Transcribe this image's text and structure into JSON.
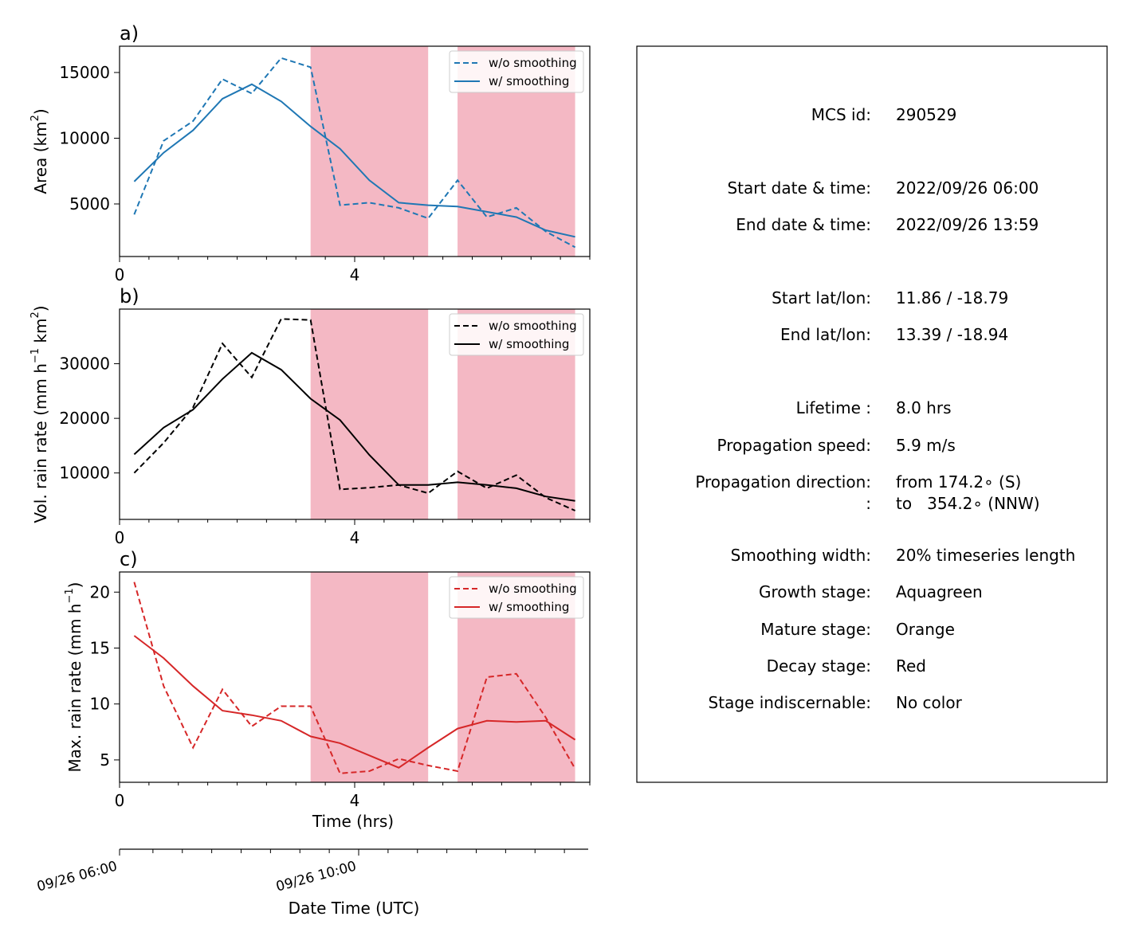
{
  "chart_data": [
    {
      "type": "line",
      "panel": "a)",
      "color": "#1f77b4",
      "ylabel": "Area  (km",
      "ylabel_sup": "2",
      "ylabel_tail": ")",
      "xlim": [
        0,
        8
      ],
      "ylim": [
        1000,
        17000
      ],
      "xticks": [
        0,
        4
      ],
      "yticks": [
        5000,
        10000,
        15000
      ],
      "legend": "top-right",
      "stage_shading": [
        [
          3.25,
          5.25
        ],
        [
          5.75,
          7.75
        ]
      ],
      "series": [
        {
          "name": "w/o smoothing",
          "dash": true,
          "x": [
            0.25,
            0.75,
            1.25,
            1.75,
            2.25,
            2.75,
            3.25,
            3.75,
            4.25,
            4.75,
            5.25,
            5.75,
            6.25,
            6.75,
            7.25,
            7.75
          ],
          "values": [
            4200,
            9800,
            11300,
            14500,
            13400,
            16100,
            15400,
            4900,
            5100,
            4700,
            3900,
            6800,
            4000,
            4700,
            2900,
            1700
          ]
        },
        {
          "name": "w/ smoothing",
          "dash": false,
          "x": [
            0.25,
            0.75,
            1.25,
            1.75,
            2.25,
            2.75,
            3.25,
            3.75,
            4.25,
            4.75,
            5.25,
            5.75,
            6.25,
            6.75,
            7.25,
            7.75
          ],
          "values": [
            6700,
            8900,
            10600,
            13000,
            14100,
            12800,
            10900,
            9200,
            6800,
            5100,
            4900,
            4800,
            4400,
            4000,
            3000,
            2500
          ]
        }
      ]
    },
    {
      "type": "line",
      "panel": "b)",
      "color": "#000000",
      "ylabel": "Vol. rain rate (mm h",
      "ylabel_sup": "−1",
      "ylabel_tail": " km",
      "ylabel_sup2": "2",
      "ylabel_tail2": ")",
      "xlim": [
        0,
        8
      ],
      "ylim": [
        1500,
        40000
      ],
      "xticks": [
        0,
        4
      ],
      "yticks": [
        10000,
        20000,
        30000
      ],
      "legend": "top-right",
      "stage_shading": [
        [
          3.25,
          5.25
        ],
        [
          5.75,
          7.75
        ]
      ],
      "series": [
        {
          "name": "w/o smoothing",
          "dash": true,
          "x": [
            0.25,
            0.75,
            1.25,
            1.75,
            2.25,
            2.75,
            3.25,
            3.75,
            4.25,
            4.75,
            5.25,
            5.75,
            6.25,
            6.75,
            7.25,
            7.75
          ],
          "values": [
            10000,
            15500,
            22000,
            33700,
            27500,
            38200,
            38000,
            7000,
            7300,
            7800,
            6300,
            10300,
            7200,
            9600,
            5500,
            3100
          ]
        },
        {
          "name": "w/ smoothing",
          "dash": false,
          "x": [
            0.25,
            0.75,
            1.25,
            1.75,
            2.25,
            2.75,
            3.25,
            3.75,
            4.25,
            4.75,
            5.25,
            5.75,
            6.25,
            6.75,
            7.25,
            7.75
          ],
          "values": [
            13400,
            18300,
            21600,
            27200,
            32000,
            28900,
            23600,
            19700,
            13300,
            7800,
            7800,
            8300,
            7800,
            7200,
            5700,
            4900
          ]
        }
      ]
    },
    {
      "type": "line",
      "panel": "c)",
      "color": "#d62728",
      "ylabel": "Max. rain rate  (mm h",
      "ylabel_sup": "−1",
      "ylabel_tail": ")",
      "xlabel": "Time (hrs)",
      "xlim": [
        0,
        8
      ],
      "ylim": [
        3,
        21.8
      ],
      "xticks": [
        0,
        4
      ],
      "yticks": [
        5,
        10,
        15,
        20
      ],
      "legend": "top-right",
      "stage_shading": [
        [
          3.25,
          5.25
        ],
        [
          5.75,
          7.75
        ]
      ],
      "series": [
        {
          "name": "w/o smoothing",
          "dash": true,
          "x": [
            0.25,
            0.75,
            1.25,
            1.75,
            2.25,
            2.75,
            3.25,
            3.75,
            4.25,
            4.75,
            5.25,
            5.75,
            6.25,
            6.75,
            7.25,
            7.75
          ],
          "values": [
            20.9,
            11.6,
            6.1,
            11.3,
            8.0,
            9.8,
            9.8,
            3.8,
            4.0,
            5.1,
            4.5,
            4.0,
            12.4,
            12.7,
            8.8,
            4.2
          ]
        },
        {
          "name": "w/ smoothing",
          "dash": false,
          "x": [
            0.25,
            0.75,
            1.25,
            1.75,
            2.25,
            2.75,
            3.25,
            3.75,
            4.25,
            4.75,
            5.25,
            5.75,
            6.25,
            6.75,
            7.25,
            7.75
          ],
          "values": [
            16.1,
            14.1,
            11.6,
            9.4,
            9.0,
            8.5,
            7.1,
            6.5,
            5.4,
            4.3,
            6.1,
            7.8,
            8.5,
            8.4,
            8.5,
            6.8
          ]
        }
      ]
    }
  ],
  "date_axis": {
    "label": "Date Time (UTC)",
    "ticks": [
      {
        "x": 0,
        "label": "09/26 06:00"
      },
      {
        "x": 4,
        "label": "09/26 10:00"
      }
    ]
  },
  "stage_color": "#f4b8c4",
  "info_panel": {
    "rows": [
      {
        "label": "MCS id:",
        "value": "290529"
      },
      {
        "label": "Start date & time:",
        "value": "2022/09/26 06:00"
      },
      {
        "label": "End date & time:",
        "value": "2022/09/26 13:59"
      },
      {
        "label": "Start lat/lon:",
        "value": "11.86 / -18.79"
      },
      {
        "label": "End lat/lon:",
        "value": "13.39 / -18.94"
      },
      {
        "label": "Lifetime :",
        "value": "8.0 hrs"
      },
      {
        "label": "Propagation speed:",
        "value": "5.9 m/s"
      },
      {
        "label": "Propagation direction:",
        "value": "from 174.2∘ (S)"
      },
      {
        "label": ":",
        "value": "to   354.2∘ (NNW)"
      },
      {
        "label": "Smoothing width:",
        "value": "20% timeseries length"
      },
      {
        "label": "Growth stage:",
        "value": "Aquagreen"
      },
      {
        "label": "Mature stage:",
        "value": "Orange"
      },
      {
        "label": "Decay stage:",
        "value": "Red"
      },
      {
        "label": "Stage indiscernable:",
        "value": "No color"
      }
    ]
  }
}
